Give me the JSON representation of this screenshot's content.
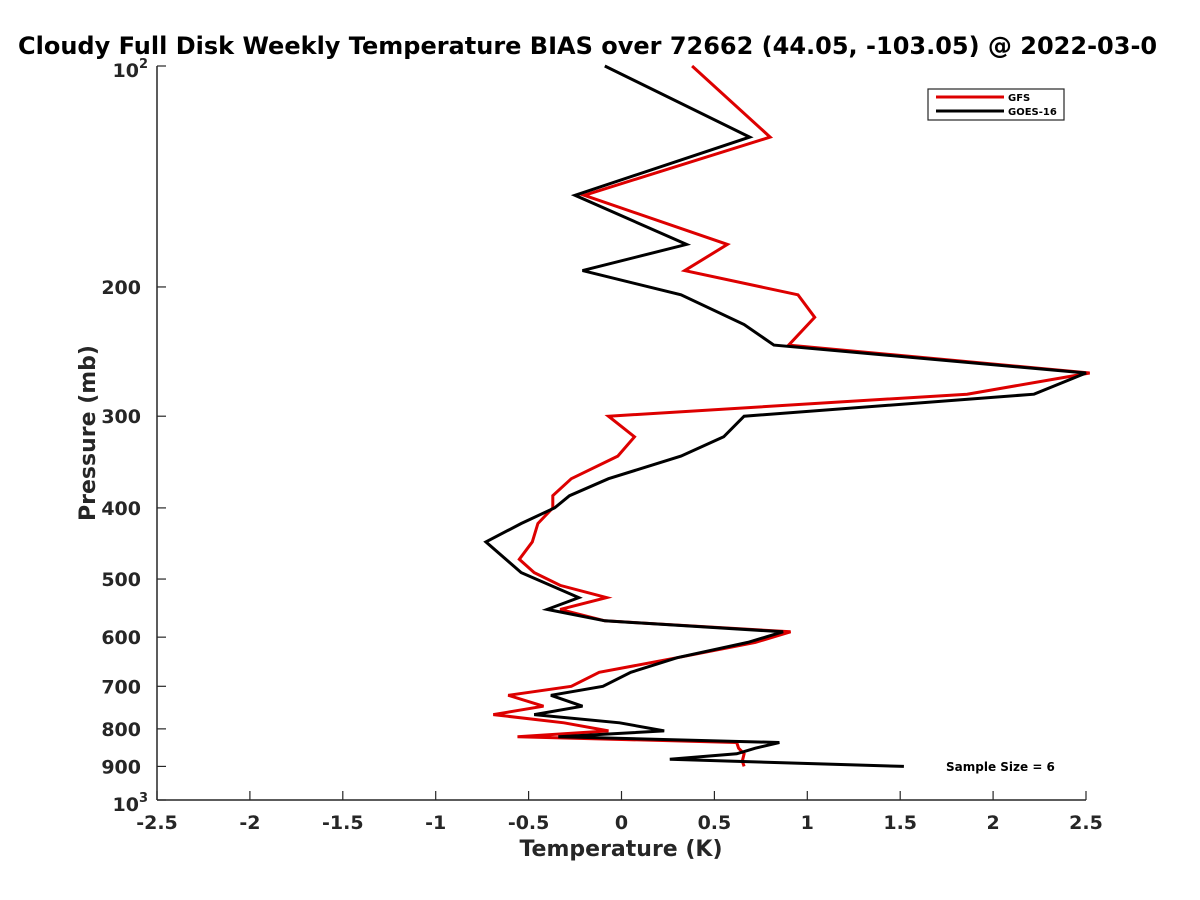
{
  "chart_data": {
    "type": "line",
    "title": "Cloudy Full Disk Weekly Temperature BIAS over 72662 (44.05, -103.05) @ 2022-03-0",
    "xlabel": "Temperature (K)",
    "ylabel": "Pressure (mb)",
    "xlim": [
      -2.5,
      2.5
    ],
    "ylim": [
      100,
      1000
    ],
    "y_scale": "log",
    "y_reversed": true,
    "grid": false,
    "legend_position": "top-right",
    "xticks": [
      "-2.5",
      "-2",
      "-1.5",
      "-1",
      "-0.5",
      "0",
      "0.5",
      "1",
      "1.5",
      "2",
      "2.5"
    ],
    "xtick_values": [
      -2.5,
      -2,
      -1.5,
      -1,
      -0.5,
      0,
      0.5,
      1,
      1.5,
      2,
      2.5
    ],
    "yticks": [
      {
        "value": 100,
        "base": "10",
        "exp": "2"
      },
      {
        "value": 200,
        "label": "200"
      },
      {
        "value": 300,
        "label": "300"
      },
      {
        "value": 400,
        "label": "400"
      },
      {
        "value": 500,
        "label": "500"
      },
      {
        "value": 600,
        "label": "600"
      },
      {
        "value": 700,
        "label": "700"
      },
      {
        "value": 800,
        "label": "800"
      },
      {
        "value": 900,
        "label": "900"
      },
      {
        "value": 1000,
        "base": "10",
        "exp": "3"
      }
    ],
    "annotation": "Sample Size = 6",
    "series": [
      {
        "name": "GFS",
        "color": "#dd0000",
        "points": [
          [
            0.38,
            100
          ],
          [
            0.8,
            125
          ],
          [
            -0.2,
            150
          ],
          [
            0.57,
            175
          ],
          [
            0.34,
            190
          ],
          [
            0.95,
            205
          ],
          [
            1.04,
            220
          ],
          [
            0.9,
            240
          ],
          [
            2.52,
            262
          ],
          [
            1.86,
            280
          ],
          [
            -0.07,
            300
          ],
          [
            0.07,
            320
          ],
          [
            -0.02,
            340
          ],
          [
            -0.27,
            365
          ],
          [
            -0.37,
            385
          ],
          [
            -0.37,
            400
          ],
          [
            -0.45,
            420
          ],
          [
            -0.48,
            445
          ],
          [
            -0.55,
            470
          ],
          [
            -0.47,
            490
          ],
          [
            -0.33,
            510
          ],
          [
            -0.08,
            530
          ],
          [
            -0.33,
            550
          ],
          [
            -0.09,
            570
          ],
          [
            0.91,
            590
          ],
          [
            0.72,
            610
          ],
          [
            0.3,
            640
          ],
          [
            -0.12,
            670
          ],
          [
            -0.27,
            700
          ],
          [
            -0.61,
            720
          ],
          [
            -0.42,
            745
          ],
          [
            -0.69,
            765
          ],
          [
            -0.31,
            785
          ],
          [
            -0.07,
            805
          ],
          [
            -0.56,
            820
          ],
          [
            0.62,
            835
          ],
          [
            0.63,
            850
          ],
          [
            0.66,
            865
          ],
          [
            0.65,
            885
          ],
          [
            0.66,
            900
          ]
        ]
      },
      {
        "name": "GOES-16",
        "color": "#000000",
        "points": [
          [
            -0.09,
            100
          ],
          [
            0.69,
            125
          ],
          [
            -0.25,
            150
          ],
          [
            0.35,
            175
          ],
          [
            -0.21,
            190
          ],
          [
            0.32,
            205
          ],
          [
            0.66,
            225
          ],
          [
            0.82,
            240
          ],
          [
            2.5,
            262
          ],
          [
            2.22,
            280
          ],
          [
            0.66,
            300
          ],
          [
            0.55,
            320
          ],
          [
            0.32,
            340
          ],
          [
            -0.07,
            365
          ],
          [
            -0.28,
            385
          ],
          [
            -0.36,
            400
          ],
          [
            -0.54,
            420
          ],
          [
            -0.73,
            445
          ],
          [
            -0.54,
            490
          ],
          [
            -0.23,
            530
          ],
          [
            -0.4,
            550
          ],
          [
            -0.09,
            570
          ],
          [
            0.87,
            590
          ],
          [
            0.68,
            610
          ],
          [
            0.3,
            640
          ],
          [
            0.05,
            670
          ],
          [
            -0.1,
            700
          ],
          [
            -0.38,
            720
          ],
          [
            -0.21,
            745
          ],
          [
            -0.47,
            765
          ],
          [
            -0.01,
            785
          ],
          [
            0.23,
            805
          ],
          [
            -0.34,
            820
          ],
          [
            0.85,
            835
          ],
          [
            0.72,
            850
          ],
          [
            0.62,
            865
          ],
          [
            0.26,
            880
          ],
          [
            1.52,
            900
          ]
        ]
      }
    ]
  }
}
